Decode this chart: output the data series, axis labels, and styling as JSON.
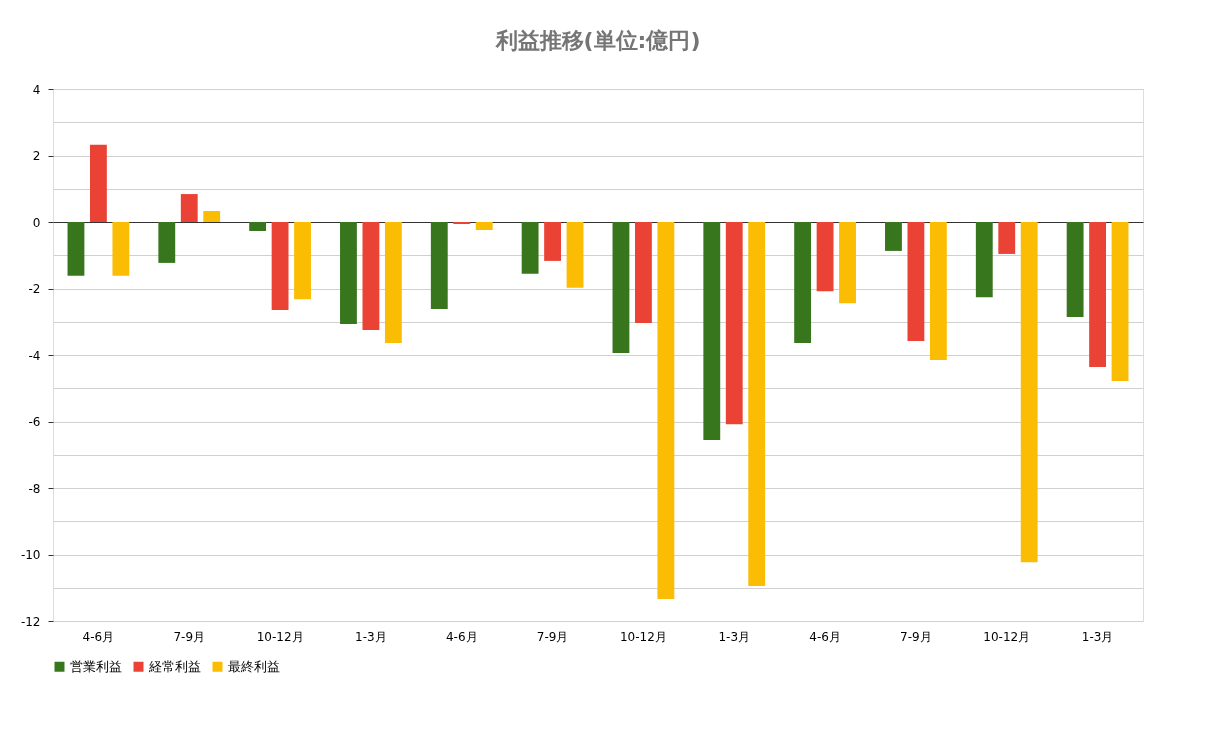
{
  "chart_data": {
    "type": "bar",
    "title": "利益推移(単位:億円)",
    "categories": [
      "4-6月",
      "7-9月",
      "10-12月",
      "1-3月",
      "4-6月",
      "7-9月",
      "10-12月",
      "1-3月",
      "4-6月",
      "7-9月",
      "10-12月",
      "1-3月"
    ],
    "series": [
      {
        "name": "営業利益",
        "color": "#38761d",
        "values": [
          -1.62,
          -1.23,
          -0.27,
          -3.07,
          -2.62,
          -1.56,
          -3.94,
          -6.56,
          -3.64,
          -0.87,
          -2.26,
          -2.86
        ]
      },
      {
        "name": "経常利益",
        "color": "#ea4335",
        "values": [
          2.32,
          0.84,
          -2.65,
          -3.25,
          -0.06,
          -1.17,
          -3.04,
          -6.08,
          -2.08,
          -3.58,
          -0.96,
          -4.36
        ]
      },
      {
        "name": "最終利益",
        "color": "#fbbc04",
        "values": [
          -1.62,
          0.33,
          -2.32,
          -3.64,
          -0.24,
          -1.98,
          -11.34,
          -10.95,
          -2.44,
          -4.15,
          -10.23,
          -4.78
        ]
      }
    ],
    "ylim": [
      -12,
      4
    ],
    "yticks": [
      -12,
      {
        "value": -11,
        "label": null
      },
      -10,
      {
        "value": -9,
        "label": null
      },
      -8,
      {
        "value": -7,
        "label": null
      },
      -6,
      {
        "value": -5,
        "label": null
      },
      -4,
      {
        "value": -3,
        "label": null
      },
      -2,
      {
        "value": -1,
        "label": null
      },
      0,
      {
        "value": 1,
        "label": null
      },
      2,
      {
        "value": 3,
        "label": null
      },
      4
    ],
    "grid": "y",
    "legend": "bottom"
  }
}
